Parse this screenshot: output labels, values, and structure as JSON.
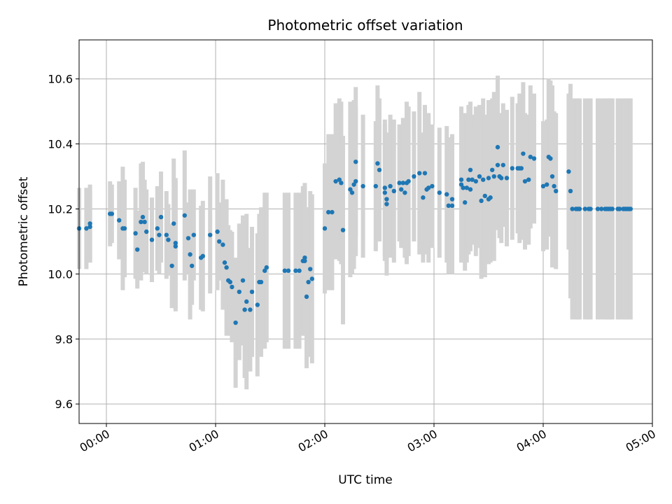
{
  "chart_data": {
    "type": "scatter",
    "title": "Photometric offset variation",
    "xlabel": "UTC time",
    "ylabel": "Photometric offset",
    "x_unit": "UTC time",
    "xlim": [
      "23:45",
      "05:00"
    ],
    "ylim": [
      9.54,
      10.72
    ],
    "x_ticks": [
      "00:00",
      "01:00",
      "02:00",
      "03:00",
      "04:00",
      "05:00"
    ],
    "y_ticks": [
      9.6,
      9.8,
      10.0,
      10.2,
      10.4,
      10.6
    ],
    "y_tick_labels": [
      "9.6",
      "9.8",
      "10.0",
      "10.2",
      "10.4",
      "10.6"
    ],
    "grid": true,
    "colors": {
      "point": "#1f77b4",
      "errorbar": "#d3d3d3",
      "grid": "#b0b0b0"
    },
    "series": [
      {
        "points": [
          [
            "23:45",
            10.14,
            0.125
          ],
          [
            "23:49",
            10.14,
            0.125
          ],
          [
            "23:51",
            10.155,
            0.12
          ],
          [
            "23:51",
            10.145,
            0.11
          ],
          [
            "00:02",
            10.185,
            0.1
          ],
          [
            "00:03",
            10.185,
            0.09
          ],
          [
            "00:07",
            10.165,
            0.12
          ],
          [
            "00:09",
            10.14,
            0.19
          ],
          [
            "00:10",
            10.14,
            0.15
          ],
          [
            "00:16",
            10.125,
            0.14
          ],
          [
            "00:17",
            10.075,
            0.12
          ],
          [
            "00:19",
            10.16,
            0.18
          ],
          [
            "00:20",
            10.175,
            0.17
          ],
          [
            "00:21",
            10.16,
            0.13
          ],
          [
            "00:22",
            10.13,
            0.13
          ],
          [
            "00:25",
            10.105,
            0.13
          ],
          [
            "00:28",
            10.14,
            0.13
          ],
          [
            "00:29",
            10.12,
            0.12
          ],
          [
            "00:30",
            10.175,
            0.14
          ],
          [
            "00:33",
            10.12,
            0.135
          ],
          [
            "00:34",
            10.105,
            0.11
          ],
          [
            "00:36",
            10.025,
            0.13
          ],
          [
            "00:37",
            10.155,
            0.2
          ],
          [
            "00:38",
            10.095,
            0.2
          ],
          [
            "00:38",
            10.085,
            0.2
          ],
          [
            "00:43",
            10.18,
            0.2
          ],
          [
            "00:45",
            10.11,
            0.11
          ],
          [
            "00:46",
            10.06,
            0.2
          ],
          [
            "00:47",
            10.025,
            0.12
          ],
          [
            "00:48",
            10.12,
            0.14
          ],
          [
            "00:52",
            10.05,
            0.16
          ],
          [
            "00:53",
            10.055,
            0.17
          ],
          [
            "00:57",
            10.12,
            0.18
          ],
          [
            "01:01",
            10.13,
            0.18
          ],
          [
            "01:02",
            10.1,
            0.12
          ],
          [
            "01:04",
            10.09,
            0.2
          ],
          [
            "01:05",
            10.035,
            0.13
          ],
          [
            "01:06",
            10.02,
            0.21
          ],
          [
            "01:07",
            9.98,
            0.17
          ],
          [
            "01:08",
            9.975,
            0.16
          ],
          [
            "01:09",
            9.96,
            0.17
          ],
          [
            "01:11",
            9.85,
            0.2
          ],
          [
            "01:13",
            9.945,
            0.21
          ],
          [
            "01:15",
            9.98,
            0.2
          ],
          [
            "01:16",
            9.89,
            0.21
          ],
          [
            "01:17",
            9.915,
            0.27
          ],
          [
            "01:19",
            9.89,
            0.19
          ],
          [
            "01:20",
            9.945,
            0.2
          ],
          [
            "01:23",
            9.905,
            0.22
          ],
          [
            "01:24",
            9.975,
            0.21
          ],
          [
            "01:25",
            9.975,
            0.23
          ],
          [
            "01:27",
            10.01,
            0.24
          ],
          [
            "01:28",
            10.02,
            0.23
          ],
          [
            "01:38",
            10.01,
            0.24
          ],
          [
            "01:40",
            10.01,
            0.24
          ],
          [
            "01:44",
            10.01,
            0.24
          ],
          [
            "01:46",
            10.01,
            0.24
          ],
          [
            "01:48",
            10.04,
            0.23
          ],
          [
            "01:49",
            10.05,
            0.23
          ],
          [
            "01:49",
            10.04,
            0.23
          ],
          [
            "01:50",
            9.93,
            0.22
          ],
          [
            "01:51",
            9.975,
            0.23
          ],
          [
            "01:52",
            10.015,
            0.24
          ],
          [
            "01:53",
            9.985,
            0.26
          ],
          [
            "02:00",
            10.14,
            0.2
          ],
          [
            "02:02",
            10.19,
            0.24
          ],
          [
            "02:04",
            10.19,
            0.24
          ],
          [
            "02:06",
            10.285,
            0.24
          ],
          [
            "02:08",
            10.29,
            0.25
          ],
          [
            "02:09",
            10.28,
            0.25
          ],
          [
            "02:10",
            10.135,
            0.29
          ],
          [
            "02:14",
            10.26,
            0.27
          ],
          [
            "02:15",
            10.25,
            0.25
          ],
          [
            "02:16",
            10.275,
            0.26
          ],
          [
            "02:17",
            10.285,
            0.23
          ],
          [
            "02:17",
            10.345,
            0.23
          ],
          [
            "02:21",
            10.27,
            0.22
          ],
          [
            "02:28",
            10.27,
            0.2
          ],
          [
            "02:29",
            10.34,
            0.24
          ],
          [
            "02:30",
            10.32,
            0.22
          ],
          [
            "02:33",
            10.265,
            0.21
          ],
          [
            "02:33",
            10.25,
            0.21
          ],
          [
            "02:34",
            10.23,
            0.2
          ],
          [
            "02:34",
            10.215,
            0.22
          ],
          [
            "02:36",
            10.27,
            0.22
          ],
          [
            "02:38",
            10.255,
            0.22
          ],
          [
            "02:41",
            10.28,
            0.18
          ],
          [
            "02:42",
            10.26,
            0.18
          ],
          [
            "02:43",
            10.28,
            0.2
          ],
          [
            "02:44",
            10.25,
            0.2
          ],
          [
            "02:45",
            10.28,
            0.25
          ],
          [
            "02:46",
            10.285,
            0.23
          ],
          [
            "02:49",
            10.3,
            0.2
          ],
          [
            "02:52",
            10.31,
            0.25
          ],
          [
            "02:54",
            10.235,
            0.2
          ],
          [
            "02:55",
            10.31,
            0.21
          ],
          [
            "02:56",
            10.26,
            0.2
          ],
          [
            "02:57",
            10.265,
            0.23
          ],
          [
            "02:59",
            10.27,
            0.19
          ],
          [
            "03:03",
            10.25,
            0.2
          ],
          [
            "03:07",
            10.245,
            0.21
          ],
          [
            "03:08",
            10.21,
            0.21
          ],
          [
            "03:10",
            10.23,
            0.2
          ],
          [
            "03:10",
            10.21,
            0.21
          ],
          [
            "03:15",
            10.29,
            0.2
          ],
          [
            "03:15",
            10.275,
            0.24
          ],
          [
            "03:16",
            10.265,
            0.23
          ],
          [
            "03:17",
            10.22,
            0.21
          ],
          [
            "03:18",
            10.265,
            0.23
          ],
          [
            "03:19",
            10.29,
            0.23
          ],
          [
            "03:20",
            10.32,
            0.21
          ],
          [
            "03:20",
            10.26,
            0.19
          ],
          [
            "03:21",
            10.29,
            0.2
          ],
          [
            "03:23",
            10.285,
            0.23
          ],
          [
            "03:25",
            10.3,
            0.22
          ],
          [
            "03:26",
            10.225,
            0.24
          ],
          [
            "03:27",
            10.29,
            0.25
          ],
          [
            "03:28",
            10.24,
            0.25
          ],
          [
            "03:30",
            10.295,
            0.24
          ],
          [
            "03:30",
            10.23,
            0.2
          ],
          [
            "03:31",
            10.235,
            0.2
          ],
          [
            "03:32",
            10.32,
            0.22
          ],
          [
            "03:33",
            10.3,
            0.26
          ],
          [
            "03:35",
            10.335,
            0.2
          ],
          [
            "03:35",
            10.39,
            0.22
          ],
          [
            "03:36",
            10.3,
            0.19
          ],
          [
            "03:37",
            10.295,
            0.2
          ],
          [
            "03:38",
            10.335,
            0.19
          ],
          [
            "03:40",
            10.295,
            0.21
          ],
          [
            "03:43",
            10.325,
            0.22
          ],
          [
            "03:46",
            10.325,
            0.2
          ],
          [
            "03:47",
            10.325,
            0.23
          ],
          [
            "03:48",
            10.325,
            0.22
          ],
          [
            "03:49",
            10.37,
            0.22
          ],
          [
            "03:50",
            10.285,
            0.21
          ],
          [
            "03:52",
            10.29,
            0.2
          ],
          [
            "03:53",
            10.36,
            0.22
          ],
          [
            "03:55",
            10.355,
            0.2
          ],
          [
            "04:00",
            10.27,
            0.2
          ],
          [
            "04:02",
            10.275,
            0.2
          ],
          [
            "04:03",
            10.36,
            0.24
          ],
          [
            "04:04",
            10.355,
            0.24
          ],
          [
            "04:05",
            10.3,
            0.28
          ],
          [
            "04:06",
            10.27,
            0.23
          ],
          [
            "04:07",
            10.255,
            0.24
          ],
          [
            "04:14",
            10.315,
            0.24
          ],
          [
            "04:15",
            10.255,
            0.33
          ],
          [
            "04:16",
            10.2,
            0.34
          ],
          [
            "04:18",
            10.2,
            0.34
          ],
          [
            "04:19",
            10.2,
            0.34
          ],
          [
            "04:20",
            10.2,
            0.34
          ],
          [
            "04:23",
            10.2,
            0.34
          ],
          [
            "04:25",
            10.2,
            0.34
          ],
          [
            "04:26",
            10.2,
            0.34
          ],
          [
            "04:30",
            10.2,
            0.34
          ],
          [
            "04:32",
            10.2,
            0.34
          ],
          [
            "04:34",
            10.2,
            0.34
          ],
          [
            "04:35",
            10.2,
            0.34
          ],
          [
            "04:36",
            10.2,
            0.34
          ],
          [
            "04:37",
            10.2,
            0.34
          ],
          [
            "04:38",
            10.2,
            0.34
          ],
          [
            "04:41",
            10.2,
            0.34
          ],
          [
            "04:42",
            10.2,
            0.34
          ],
          [
            "04:44",
            10.2,
            0.34
          ],
          [
            "04:45",
            10.2,
            0.34
          ],
          [
            "04:46",
            10.2,
            0.34
          ],
          [
            "04:47",
            10.2,
            0.34
          ],
          [
            "04:48",
            10.2,
            0.34
          ]
        ]
      }
    ]
  }
}
